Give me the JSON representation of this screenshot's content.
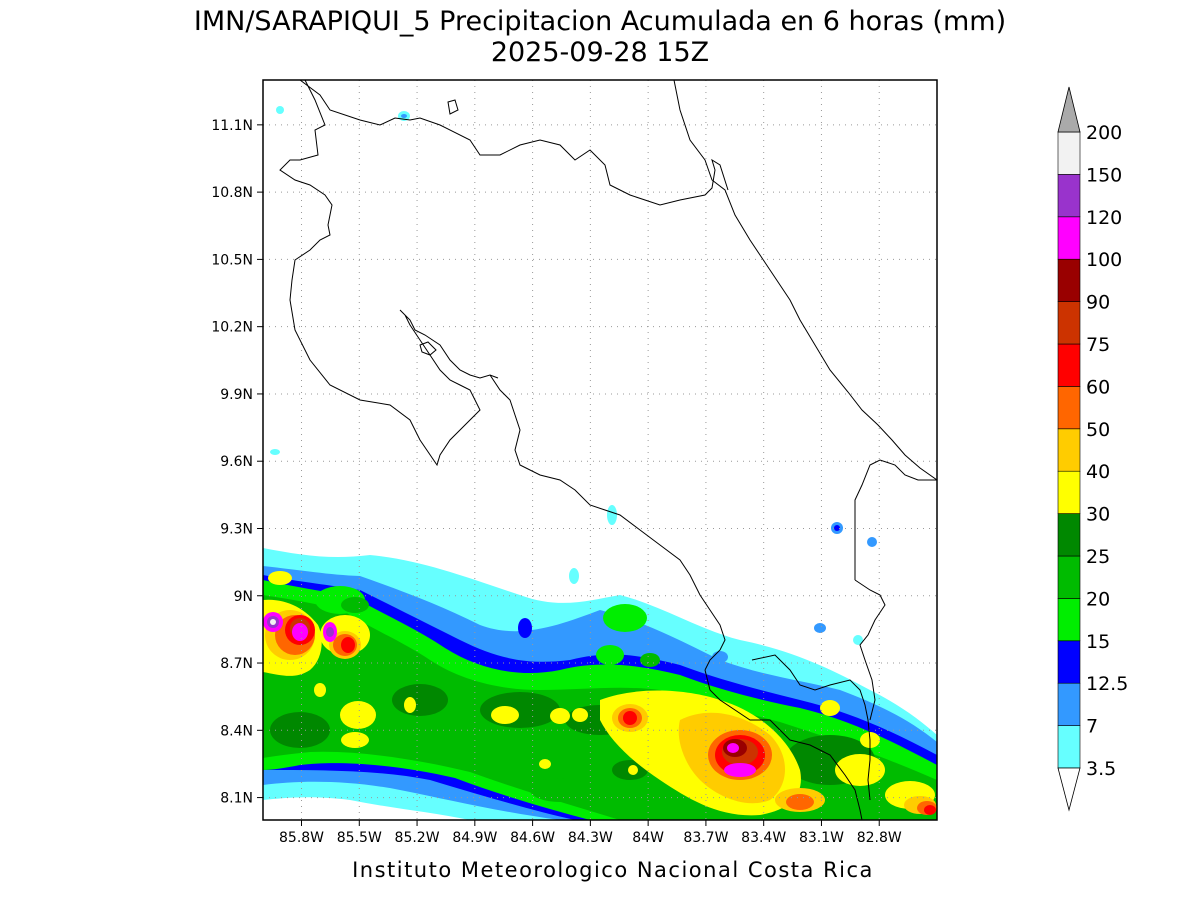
{
  "title": "IMN/SARAPIQUI_5 Precipitacion Acumulada en 6 horas (mm)",
  "subtitle": "2025-09-28 15Z",
  "footer": "Instituto Meteorologico Nacional Costa Rica",
  "map": {
    "lon_range": [
      -86.0,
      -82.5
    ],
    "lat_range": [
      8.0,
      11.3
    ],
    "lat_ticks": [
      "11.1N",
      "10.8N",
      "10.5N",
      "10.2N",
      "9.9N",
      "9.6N",
      "9.3N",
      "9N",
      "8.7N",
      "8.4N",
      "8.1N"
    ],
    "lon_ticks": [
      "85.8W",
      "85.5W",
      "85.2W",
      "84.9W",
      "84.6W",
      "84.3W",
      "84W",
      "83.7W",
      "83.4W",
      "83.1W",
      "82.8W"
    ],
    "grid": "dotted"
  },
  "colorbar": {
    "labels": [
      "3.5",
      "7",
      "12.5",
      "15",
      "20",
      "25",
      "30",
      "40",
      "50",
      "60",
      "75",
      "90",
      "100",
      "120",
      "150",
      "200"
    ],
    "colors": [
      "#66ffff",
      "#3399ff",
      "#0000ff",
      "#00ee00",
      "#00bb00",
      "#008800",
      "#ffff00",
      "#ffcc00",
      "#ff6600",
      "#ff0000",
      "#cc3300",
      "#990000",
      "#ff00ff",
      "#9933cc",
      "#f2f2f2",
      "#aaaaaa"
    ]
  }
}
